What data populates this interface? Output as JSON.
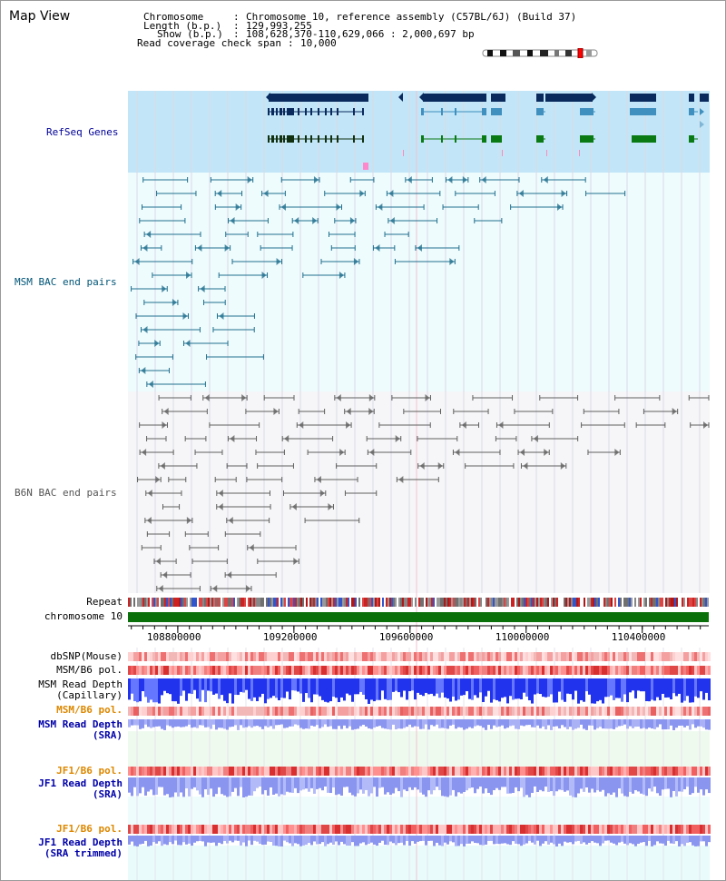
{
  "view_title": "Map View",
  "header": {
    "chromosome_label": "Chromosome",
    "chromosome_value": "Chromosome 10, reference assembly (C57BL/6J) (Build 37)",
    "length_label": "Length (b.p.)",
    "length_value": "129,993,255",
    "show_label": "Show (b.p.)",
    "show_value": "108,628,370-110,629,066 : 2,000,697 bp",
    "coverage_label": "Read coverage check span",
    "coverage_value": "10,000"
  },
  "tracks": {
    "refseq_genes": "RefSeq Genes",
    "msm_bac": "MSM BAC end pairs",
    "b6n_bac": "B6N BAC end pairs",
    "repeat": "Repeat",
    "chromosome": "chromosome 10"
  },
  "axis": {
    "start": 108628370,
    "end": 110629066,
    "ticks": [
      {
        "value": 108800000,
        "label": "108800000"
      },
      {
        "value": 109200000,
        "label": "109200000"
      },
      {
        "value": 109600000,
        "label": "109600000"
      },
      {
        "value": 110000000,
        "label": "110000000"
      },
      {
        "value": 110400000,
        "label": "110400000"
      }
    ]
  },
  "lower_tracks": [
    {
      "id": "dbsnp",
      "lines": [
        "dbSNP(Mouse)"
      ],
      "color": "#000000"
    },
    {
      "id": "msm-b6-pol-1",
      "lines": [
        "MSM/B6 pol."
      ],
      "color": "#000000"
    },
    {
      "id": "msm-depth-cap",
      "lines": [
        "MSM Read Depth",
        "(Capillary)"
      ],
      "color": "#000000"
    },
    {
      "id": "msm-b6-pol-2",
      "lines": [
        "MSM/B6 pol."
      ],
      "color": "#dd8800"
    },
    {
      "id": "msm-depth-sra",
      "lines": [
        "MSM Read Depth",
        "(SRA)"
      ],
      "color": "#0000aa"
    },
    {
      "id": "jf1-b6-pol-1",
      "lines": [
        "JF1/B6 pol."
      ],
      "color": "#dd8800"
    },
    {
      "id": "jf1-depth-sra",
      "lines": [
        "JF1 Read Depth",
        "(SRA)"
      ],
      "color": "#0000aa"
    },
    {
      "id": "jf1-b6-pol-2",
      "lines": [
        "JF1/B6 pol."
      ],
      "color": "#dd8800"
    },
    {
      "id": "jf1-depth-sra-trim",
      "lines": [
        "JF1 Read Depth",
        "(SRA trimmed)"
      ],
      "color": "#0000aa"
    }
  ],
  "colors": {
    "refseq_bg": "#c2e6f7",
    "msm_bg": "#eefcfd",
    "b6n_bg": "#f6f6f8",
    "gene_dark": "#0a2a5e",
    "gene_mid": "#3f8fbf",
    "gene_green": "#0a7a14",
    "msm_line": "#216f8f",
    "b6n_line": "#606060",
    "chromosome_bar": "#0a700a",
    "refseq_label": "#000099",
    "msm_label": "#005577",
    "b6n_label": "#555555"
  }
}
